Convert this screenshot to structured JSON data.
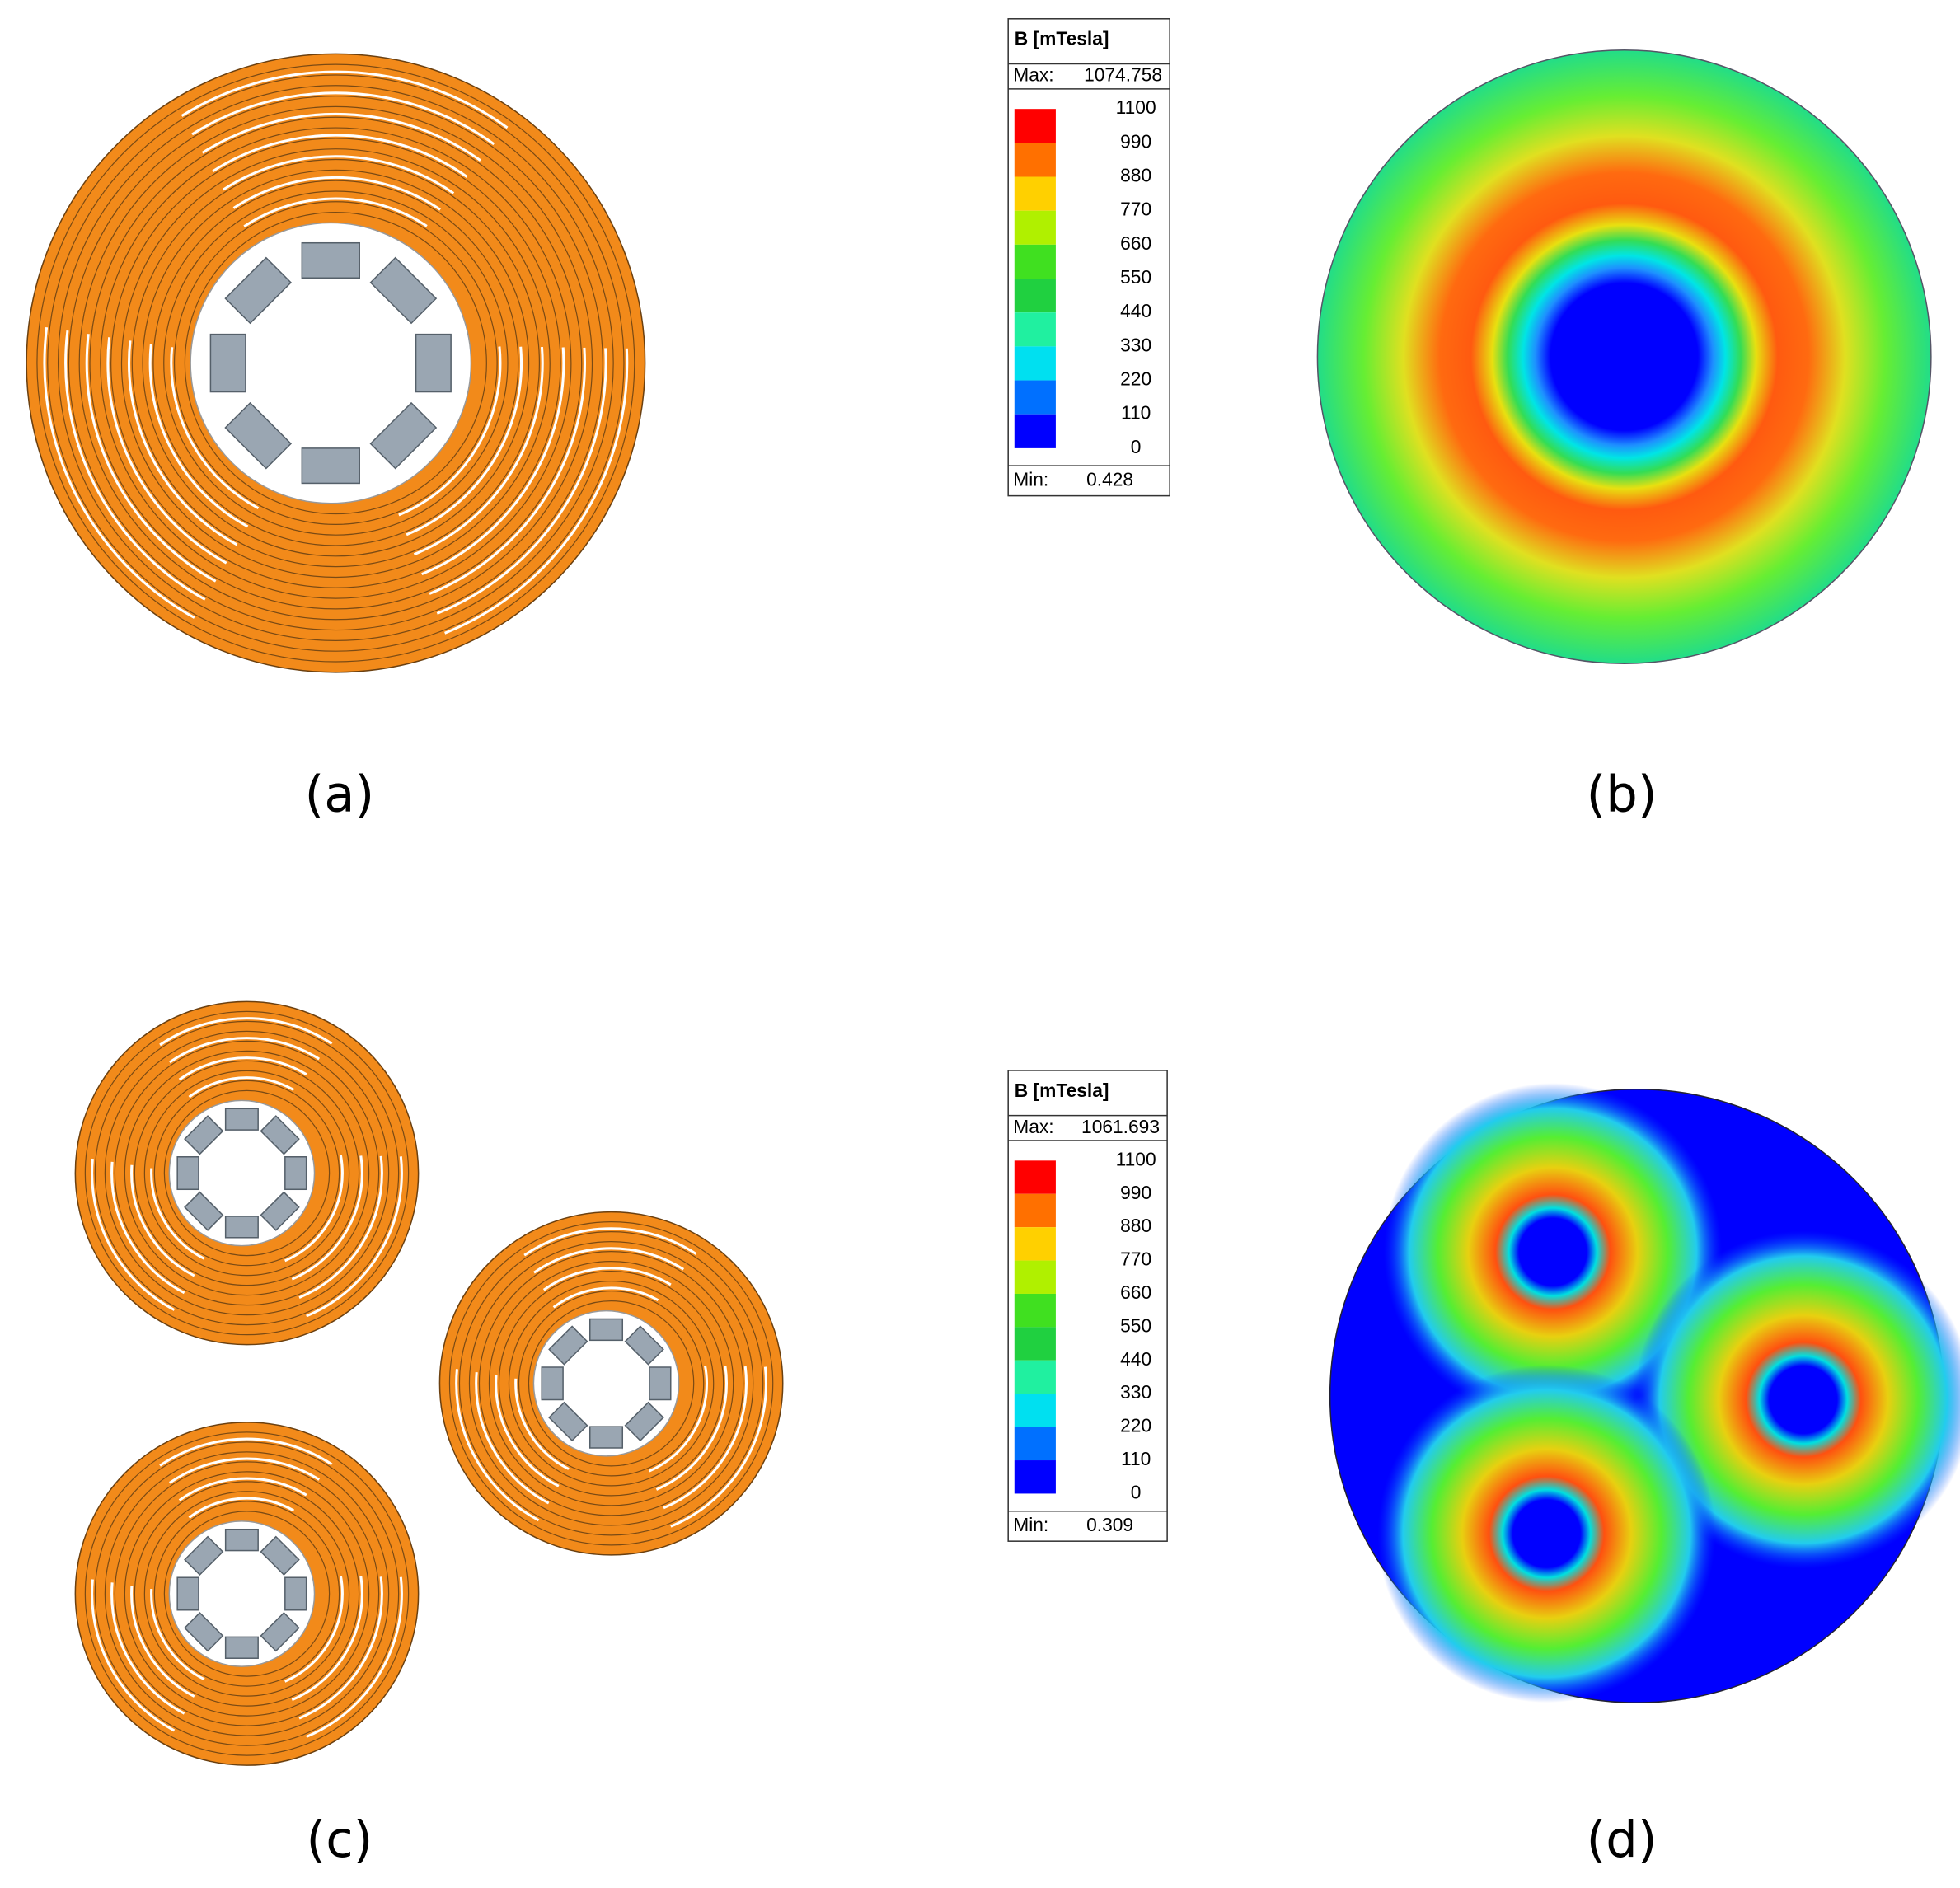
{
  "labels": [
    "(a)",
    "(b)",
    "(c)",
    "(d)"
  ],
  "legends": [
    {
      "title": "B [mTesla]",
      "max_label": "Max:",
      "max": 1074.758,
      "levels": [
        1100,
        990,
        880,
        770,
        660,
        550,
        440,
        330,
        220,
        110,
        0
      ],
      "min_label": "Min:",
      "min": 0.428
    },
    {
      "title": "B [mTesla]",
      "max_label": "Max:",
      "max": 1061.693,
      "levels": [
        1100,
        990,
        880,
        770,
        660,
        550,
        440,
        330,
        220,
        110,
        0
      ],
      "min_label": "Min:",
      "min": 0.309
    }
  ]
}
